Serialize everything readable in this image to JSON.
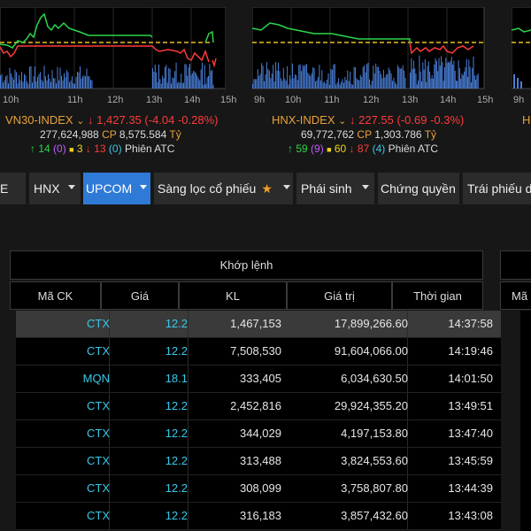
{
  "charts": [
    {
      "x_ticks": [
        "10h",
        "11h",
        "12h",
        "13h",
        "14h",
        "15h"
      ],
      "index_name": "VN30-INDEX",
      "index_value": "1,427.35",
      "index_change": "(-4.04 -0.28%)",
      "volume": "277,624,988",
      "cp_label": "CP",
      "value": "8,575.584",
      "unit": "Tỷ",
      "up_count": "14",
      "ceiling_count": "(0)",
      "ref_count": "3",
      "down_count": "13",
      "floor_count": "(0)",
      "session": "Phiên ATC"
    },
    {
      "x_ticks": [
        "9h",
        "10h",
        "11h",
        "12h",
        "13h",
        "14h",
        "15h"
      ],
      "index_name": "HNX-INDEX",
      "index_value": "227.55",
      "index_change": "(-0.69 -0.3%)",
      "volume": "69,772,762",
      "cp_label": "CP",
      "value": "1,303.786",
      "unit": "Tỷ",
      "up_count": "59",
      "ceiling_count": "(9)",
      "ref_count": "60",
      "down_count": "87",
      "floor_count": "(4)",
      "session": "Phiên ATC"
    }
  ],
  "third_chart": {
    "x_tick": "9h",
    "index_initial": "H"
  },
  "menu": {
    "partial_label": "E",
    "hnx": "HNX",
    "upcom": "UPCOM",
    "screener": "Sàng lọc cổ phiếu",
    "derivatives": "Phái sinh",
    "warrants": "Chứng quyền",
    "bonds": "Trái phiếu d"
  },
  "table": {
    "group_title": "Khớp lệnh",
    "columns": [
      "Mã CK",
      "Giá",
      "KL",
      "Giá trị",
      "Thời gian"
    ],
    "right_partial_col": "Mã",
    "rows": [
      {
        "code": "CTX",
        "price": "12.2",
        "vol": "1,467,153",
        "val": "17,899,266.60",
        "time": "14:37:58"
      },
      {
        "code": "CTX",
        "price": "12.2",
        "vol": "7,508,530",
        "val": "91,604,066.00",
        "time": "14:19:46"
      },
      {
        "code": "MQN",
        "price": "18.1",
        "vol": "333,405",
        "val": "6,034,630.50",
        "time": "14:01:50"
      },
      {
        "code": "CTX",
        "price": "12.2",
        "vol": "2,452,816",
        "val": "29,924,355.20",
        "time": "13:49:51"
      },
      {
        "code": "CTX",
        "price": "12.2",
        "vol": "344,029",
        "val": "4,197,153.80",
        "time": "13:47:40"
      },
      {
        "code": "CTX",
        "price": "12.2",
        "vol": "313,488",
        "val": "3,824,553.60",
        "time": "13:45:59"
      },
      {
        "code": "CTX",
        "price": "12.2",
        "vol": "308,099",
        "val": "3,758,807.80",
        "time": "13:44:39"
      },
      {
        "code": "CTX",
        "price": "12.2",
        "vol": "316,183",
        "val": "3,857,432.60",
        "time": "13:43:08"
      }
    ]
  },
  "colors": {
    "accent_blue": "#2f7ad6",
    "code_cyan": "#3ac8e8",
    "up_green": "#2cd64b",
    "down_red": "#ff3b3b",
    "ref_yellow": "#f0d020",
    "index_orange": "#e8a23a"
  }
}
